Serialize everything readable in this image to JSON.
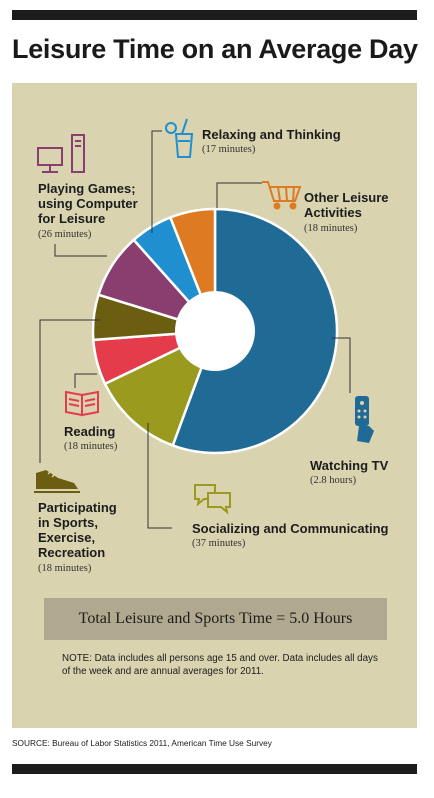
{
  "title": "Leisure Time on an Average Day",
  "chart_data": {
    "type": "pie",
    "style": "donut",
    "slices": [
      {
        "label": "Watching TV",
        "value_text": "(2.8 hours)",
        "minutes": 168,
        "color": "#1f6b96"
      },
      {
        "label": "Socializing and Communicating",
        "value_text": "(37 minutes)",
        "minutes": 37,
        "color": "#9a9a1e"
      },
      {
        "label": "Reading",
        "value_text": "(18 minutes)",
        "minutes": 18,
        "color": "#e53c4c"
      },
      {
        "label": "Participating in Sports, Exercise, Recreation",
        "value_text": "(18 minutes)",
        "minutes": 18,
        "color": "#6b5e10"
      },
      {
        "label": "Playing Games; using Computer for Leisure",
        "value_text": "(26 minutes)",
        "minutes": 26,
        "color": "#8a3e70"
      },
      {
        "label": "Relaxing and Thinking",
        "value_text": "(17 minutes)",
        "minutes": 17,
        "color": "#1f8fd0"
      },
      {
        "label": "Other Leisure Activities",
        "value_text": "(18 minutes)",
        "minutes": 18,
        "color": "#dd7a22"
      }
    ]
  },
  "labels": {
    "relaxing": {
      "line1": "Relaxing and Thinking",
      "value": "(17 minutes)"
    },
    "other": {
      "line1": "Other Leisure",
      "line2": "Activities",
      "value": "(18 minutes)"
    },
    "games": {
      "line1": "Playing Games;",
      "line2": "using Computer",
      "line3": "for Leisure",
      "value": "(26 minutes)"
    },
    "reading": {
      "line1": "Reading",
      "value": "(18 minutes)"
    },
    "tv": {
      "line1": "Watching TV",
      "value": "(2.8 hours)"
    },
    "sports": {
      "line1": "Participating",
      "line2": "in Sports,",
      "line3": "Exercise,",
      "line4": "Recreation",
      "value": "(18 minutes)"
    },
    "social": {
      "line1": "Socializing and Communicating",
      "value": "(37 minutes)"
    }
  },
  "icons": {
    "computer": "computer-icon",
    "drink": "drink-icon",
    "cart": "shopping-cart-icon",
    "book": "book-icon",
    "remote": "tv-remote-icon",
    "shoe": "sneaker-icon",
    "chat": "chat-bubbles-icon"
  },
  "icon_colors": {
    "computer": "#8a3e70",
    "drink": "#1f8fd0",
    "cart": "#dd7a22",
    "book": "#e53c4c",
    "remote": "#1f6b96",
    "shoe": "#6b5e10",
    "chat": "#9a9a1e"
  },
  "total": "Total Leisure and Sports Time = 5.0 Hours",
  "note": "NOTE: Data includes all persons age 15 and over. Data includes all days of the week and are annual averages for 2011.",
  "source": "SOURCE: Bureau of Labor Statistics 2011, American Time Use Survey"
}
